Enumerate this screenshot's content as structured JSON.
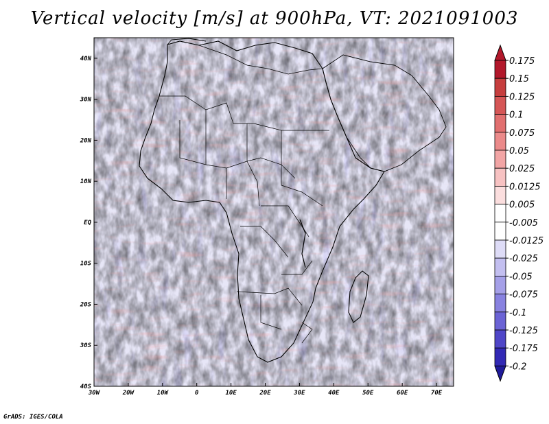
{
  "title": "Vertical velocity [m/s] at 900hPa, VT: 2021091003",
  "credit": "GrADS: IGES/COLA",
  "chart_data": {
    "type": "heatmap",
    "title": "Vertical velocity [m/s] at 900hPa, VT: 2021091003",
    "xlim": [
      -30,
      75
    ],
    "ylim": [
      -40,
      45
    ],
    "x_ticks": [
      {
        "value": -30,
        "label": "30W"
      },
      {
        "value": -20,
        "label": "20W"
      },
      {
        "value": -10,
        "label": "10W"
      },
      {
        "value": 0,
        "label": "0"
      },
      {
        "value": 10,
        "label": "10E"
      },
      {
        "value": 20,
        "label": "20E"
      },
      {
        "value": 30,
        "label": "30E"
      },
      {
        "value": 40,
        "label": "40E"
      },
      {
        "value": 50,
        "label": "50E"
      },
      {
        "value": 60,
        "label": "60E"
      },
      {
        "value": 70,
        "label": "70E"
      }
    ],
    "y_ticks": [
      {
        "value": 40,
        "label": "40N"
      },
      {
        "value": 30,
        "label": "30N"
      },
      {
        "value": 20,
        "label": "20N"
      },
      {
        "value": 10,
        "label": "10N"
      },
      {
        "value": 0,
        "label": "EQ"
      },
      {
        "value": -10,
        "label": "10S"
      },
      {
        "value": -20,
        "label": "20S"
      },
      {
        "value": -30,
        "label": "30S"
      },
      {
        "value": -40,
        "label": "40S"
      }
    ],
    "colorbar": {
      "labels": [
        "0.175",
        "0.15",
        "0.125",
        "0.1",
        "0.075",
        "0.05",
        "0.025",
        "0.0125",
        "0.005",
        "-0.005",
        "-0.0125",
        "-0.025",
        "-0.05",
        "-0.075",
        "-0.1",
        "-0.125",
        "-0.175",
        "-0.2"
      ],
      "colors": [
        "#b2182b",
        "#c63e3e",
        "#d55656",
        "#e16f6f",
        "#eb8a8a",
        "#f2a5a5",
        "#f7c2c2",
        "#fbdede",
        "#ffffff",
        "#ffffff",
        "#dedcf7",
        "#c3bff0",
        "#a5a0e8",
        "#8882e0",
        "#6b63d5",
        "#4f46c8",
        "#3229b5",
        "#1f1a9a"
      ],
      "top_color": "#b2182b",
      "bottom_color": "#1f1a9a"
    }
  }
}
